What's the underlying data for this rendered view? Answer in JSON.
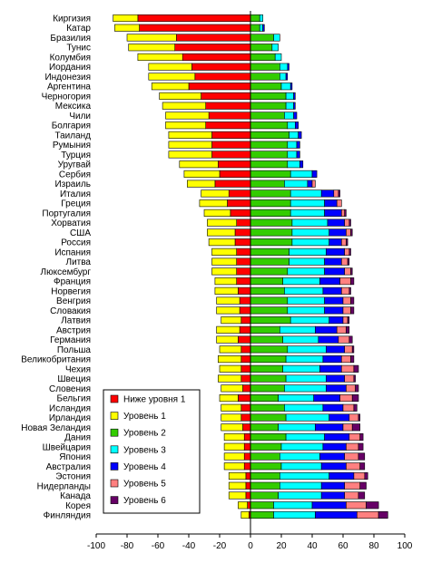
{
  "chart_data": {
    "type": "bar",
    "orientation": "horizontal",
    "stacked": true,
    "diverging": true,
    "xlim": [
      -100,
      100
    ],
    "xticks": [
      -100,
      -80,
      -60,
      -40,
      -20,
      0,
      20,
      40,
      60,
      80,
      100
    ],
    "grid": false,
    "legend_position": "lower-left inside plot",
    "colors": {
      "below1": "#ff0000",
      "level1": "#ffff00",
      "level2": "#33cc00",
      "level3": "#00ffff",
      "level4": "#0000ff",
      "level5": "#ff8080",
      "level6": "#660066"
    },
    "series": [
      {
        "key": "below1",
        "name": "Ниже уровня 1"
      },
      {
        "key": "level1",
        "name": "Уровень 1"
      },
      {
        "key": "level2",
        "name": "Уровень 2"
      },
      {
        "key": "level3",
        "name": "Уровень 3"
      },
      {
        "key": "level4",
        "name": "Уровень 4"
      },
      {
        "key": "level5",
        "name": "Уровень 5"
      },
      {
        "key": "level6",
        "name": "Уровень 6"
      }
    ],
    "categories": [
      "Киргизия",
      "Катар",
      "Бразилия",
      "Тунис",
      "Колумбия",
      "Иордания",
      "Индонезия",
      "Аргентина",
      "Черногория",
      "Мексика",
      "Чили",
      "Болгария",
      "Таиланд",
      "Румыния",
      "Турция",
      "Уругвай",
      "Сербия",
      "Израиль",
      "Италия",
      "Греция",
      "Португалия",
      "Хорватия",
      "США",
      "Россия",
      "Испания",
      "Литва",
      "Люксембург",
      "Франция",
      "Норвегия",
      "Венгрия",
      "Словакия",
      "Латвия",
      "Австрия",
      "Германия",
      "Польша",
      "Великобритания",
      "Чехия",
      "Швеция",
      "Словения",
      "Бельгия",
      "Исландия",
      "Ирландия",
      "Новая Зеландия",
      "Дания",
      "Швейцария",
      "Япония",
      "Австралия",
      "Эстония",
      "Нидерланды",
      "Канада",
      "Корея",
      "Финляндия"
    ],
    "below1": [
      73,
      72,
      48,
      49,
      44,
      38,
      36,
      40,
      32,
      29,
      27,
      29,
      25,
      25,
      25,
      21,
      20,
      23,
      14,
      15,
      13,
      9,
      10,
      10,
      9,
      9,
      9,
      9,
      8,
      7,
      7,
      6,
      7,
      8,
      6,
      6,
      6,
      6,
      5,
      8,
      6,
      6,
      5,
      4,
      4,
      4,
      4,
      3,
      3,
      3,
      2,
      1
    ],
    "level1": [
      16,
      16,
      32,
      30,
      29,
      28,
      30,
      24,
      27,
      28,
      28,
      26,
      28,
      28,
      28,
      25,
      23,
      18,
      18,
      18,
      17,
      19,
      18,
      17,
      16,
      16,
      16,
      14,
      15,
      15,
      15,
      13,
      15,
      14,
      14,
      15,
      14,
      15,
      14,
      12,
      13,
      13,
      14,
      13,
      13,
      13,
      13,
      11,
      11,
      11,
      6,
      5
    ],
    "level2": [
      6,
      6,
      15,
      14,
      16,
      19,
      19,
      20,
      23,
      23,
      22,
      24,
      25,
      24,
      24,
      24,
      26,
      22,
      26,
      26,
      26,
      27,
      27,
      27,
      25,
      25,
      24,
      21,
      22,
      24,
      24,
      26,
      19,
      21,
      24,
      23,
      21,
      23,
      22,
      18,
      22,
      23,
      18,
      23,
      20,
      19,
      20,
      19,
      19,
      18,
      15,
      15
    ],
    "level3": [
      2,
      2,
      4,
      4,
      4,
      5,
      4,
      6,
      5,
      5,
      6,
      5,
      6,
      6,
      6,
      8,
      14,
      15,
      20,
      22,
      22,
      23,
      24,
      24,
      24,
      23,
      24,
      24,
      25,
      24,
      24,
      25,
      23,
      23,
      25,
      24,
      24,
      26,
      27,
      23,
      25,
      28,
      24,
      25,
      27,
      26,
      26,
      32,
      27,
      28,
      25,
      27
    ],
    "level4": [
      0,
      1,
      0,
      0,
      0,
      1,
      1,
      1,
      1,
      1,
      2,
      2,
      2,
      2,
      2,
      2,
      3,
      3,
      8,
      8,
      11,
      11,
      11,
      8,
      12,
      11,
      13,
      13,
      12,
      12,
      12,
      9,
      14,
      13,
      12,
      12,
      14,
      12,
      13,
      17,
      13,
      13,
      18,
      16,
      15,
      16,
      16,
      16,
      15,
      15,
      22,
      27
    ],
    "level5": [
      0,
      0,
      0,
      0,
      0,
      0,
      0,
      0,
      0,
      0,
      0,
      0,
      0,
      0,
      0,
      0,
      0,
      2,
      3,
      3,
      2,
      3,
      3,
      3,
      3,
      4,
      4,
      7,
      5,
      5,
      5,
      3,
      6,
      7,
      5,
      6,
      8,
      6,
      6,
      8,
      7,
      6,
      6,
      7,
      8,
      9,
      9,
      7,
      10,
      9,
      13,
      14
    ],
    "level6": [
      0,
      0,
      0,
      0,
      0,
      0,
      0,
      0,
      0,
      0,
      0,
      0,
      0,
      0,
      0,
      0,
      0,
      0,
      1,
      0,
      1,
      1,
      1,
      1,
      1,
      1,
      1,
      2,
      1,
      2,
      2,
      1,
      2,
      2,
      1,
      2,
      3,
      1,
      2,
      4,
      2,
      1,
      5,
      2,
      3,
      4,
      3,
      2,
      4,
      4,
      8,
      6
    ]
  }
}
